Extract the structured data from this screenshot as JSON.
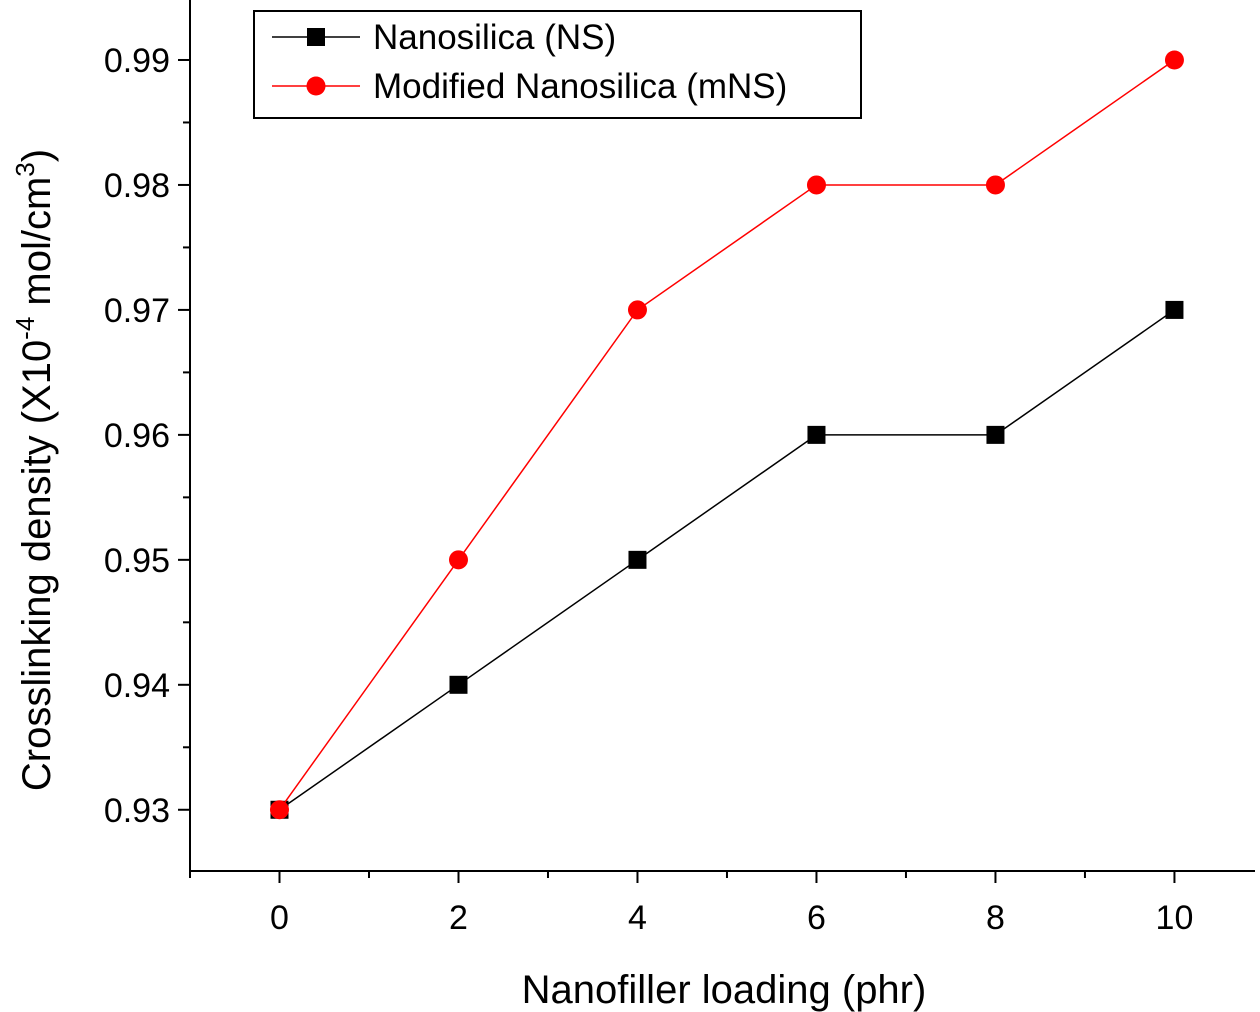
{
  "chart_data": {
    "type": "line",
    "x": [
      0,
      2,
      4,
      6,
      8,
      10
    ],
    "series": [
      {
        "name": "Nanosilica (NS)",
        "values": [
          0.93,
          0.94,
          0.95,
          0.96,
          0.96,
          0.97
        ],
        "color": "#000000",
        "marker": "square"
      },
      {
        "name": "Modified Nanosilica (mNS)",
        "values": [
          0.93,
          0.95,
          0.97,
          0.98,
          0.98,
          0.99
        ],
        "color": "#ff0000",
        "marker": "circle"
      }
    ],
    "xlabel": "Nanofiller loading (phr)",
    "ylabel_main": "Crosslinking density (X10",
    "ylabel_exp": "-4",
    "ylabel_mid": " mol/cm",
    "ylabel_sup": "3",
    "ylabel_end": ")",
    "xlim": [
      -1,
      10.9
    ],
    "ylim": [
      0.9251,
      0.9948
    ],
    "xticks": [
      0,
      2,
      4,
      6,
      8,
      10
    ],
    "xtick_labels": [
      "0",
      "2",
      "4",
      "6",
      "8",
      "10"
    ],
    "yticks": [
      0.93,
      0.94,
      0.95,
      0.96,
      0.97,
      0.98,
      0.99
    ],
    "ytick_labels": [
      "0.93",
      "0.94",
      "0.95",
      "0.96",
      "0.97",
      "0.98",
      "0.99"
    ],
    "grid": false,
    "legend_position": "top-left"
  }
}
